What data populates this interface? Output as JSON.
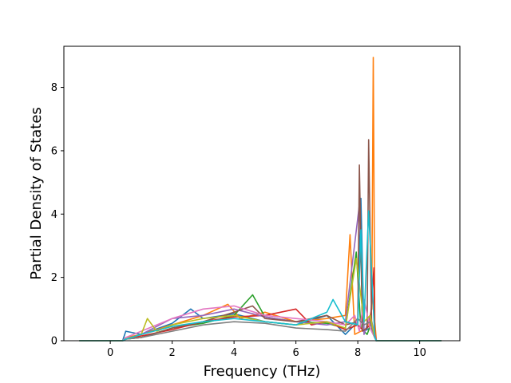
{
  "chart_data": {
    "type": "line",
    "title": "",
    "xlabel": "Frequency (THz)",
    "ylabel": "Partial Density of States",
    "xlim": [
      -1.5,
      11.3
    ],
    "ylim": [
      0,
      9.3
    ],
    "xticks": [
      "0",
      "2",
      "4",
      "6",
      "8",
      "10"
    ],
    "yticks": [
      "0",
      "2",
      "4",
      "6",
      "8"
    ],
    "grid": false,
    "legend": "none",
    "series_count": 10,
    "colors": [
      "#1f77b4",
      "#ff7f0e",
      "#2ca02c",
      "#d62728",
      "#9467bd",
      "#8c564b",
      "#e377c2",
      "#7f7f7f",
      "#bcbd22",
      "#17becf"
    ],
    "series": [
      {
        "x": [
          -1.0,
          0.4,
          0.5,
          1.0,
          2.0,
          2.6,
          3.0,
          4.0,
          5.0,
          6.0,
          7.0,
          7.6,
          8.0,
          8.1,
          8.2,
          8.4,
          8.55,
          8.6,
          10.7
        ],
        "values": [
          0,
          0,
          0.3,
          0.2,
          0.55,
          1.0,
          0.7,
          0.85,
          0.6,
          0.5,
          0.8,
          0.2,
          0.6,
          4.5,
          0.3,
          0.4,
          0.1,
          0,
          0
        ]
      },
      {
        "x": [
          -1.0,
          0.4,
          0.5,
          1.0,
          2.0,
          3.0,
          3.8,
          4.2,
          5.0,
          6.0,
          7.0,
          7.6,
          7.75,
          7.9,
          8.3,
          8.45,
          8.5,
          8.55,
          8.6,
          10.7
        ],
        "values": [
          0,
          0,
          0.1,
          0.2,
          0.5,
          0.8,
          1.15,
          0.7,
          0.9,
          0.6,
          0.7,
          0.8,
          3.35,
          0.2,
          0.4,
          1.0,
          8.95,
          0.6,
          0,
          0
        ]
      },
      {
        "x": [
          -1.0,
          0.4,
          0.5,
          1.0,
          2.0,
          3.0,
          4.0,
          4.6,
          5.0,
          6.0,
          7.0,
          7.6,
          7.95,
          8.1,
          8.3,
          8.45,
          8.55,
          8.6,
          10.7
        ],
        "values": [
          0,
          0,
          0.05,
          0.1,
          0.4,
          0.55,
          0.8,
          1.45,
          0.75,
          0.6,
          0.55,
          0.4,
          2.8,
          0.4,
          0.2,
          0.6,
          0.1,
          0,
          0
        ]
      },
      {
        "x": [
          -1.0,
          0.4,
          0.5,
          1.0,
          2.0,
          3.0,
          4.0,
          5.0,
          6.0,
          6.5,
          7.0,
          7.6,
          8.0,
          8.2,
          8.4,
          8.52,
          8.55,
          8.6,
          10.7
        ],
        "values": [
          0,
          0,
          0.05,
          0.15,
          0.35,
          0.6,
          0.75,
          0.8,
          1.0,
          0.5,
          0.6,
          0.35,
          0.5,
          0.3,
          0.5,
          2.3,
          0.2,
          0,
          0
        ]
      },
      {
        "x": [
          -1.0,
          0.4,
          0.5,
          1.0,
          2.0,
          3.0,
          4.0,
          5.0,
          6.0,
          7.0,
          7.6,
          8.05,
          8.2,
          8.4,
          8.55,
          8.6,
          10.7
        ],
        "values": [
          0,
          0,
          0.05,
          0.2,
          0.7,
          0.8,
          1.0,
          0.75,
          0.6,
          0.5,
          0.6,
          4.3,
          0.2,
          0.8,
          0.2,
          0,
          0
        ]
      },
      {
        "x": [
          -1.0,
          0.4,
          0.5,
          1.0,
          2.0,
          3.0,
          4.0,
          4.6,
          5.0,
          6.0,
          7.0,
          7.6,
          8.0,
          8.05,
          8.15,
          8.3,
          8.35,
          8.45,
          8.55,
          8.6,
          10.7
        ],
        "values": [
          0,
          0,
          0.05,
          0.1,
          0.4,
          0.6,
          0.9,
          1.1,
          0.7,
          0.6,
          0.8,
          0.5,
          0.6,
          5.55,
          0.3,
          0.4,
          6.35,
          0.3,
          0.1,
          0,
          0
        ]
      },
      {
        "x": [
          -1.0,
          0.4,
          0.5,
          1.0,
          2.0,
          3.0,
          4.0,
          5.0,
          6.0,
          7.0,
          7.6,
          7.9,
          8.05,
          8.2,
          8.4,
          8.55,
          8.6,
          10.7
        ],
        "values": [
          0,
          0,
          0.1,
          0.3,
          0.7,
          1.0,
          1.1,
          0.8,
          0.7,
          0.6,
          0.5,
          0.8,
          0.3,
          1.3,
          0.4,
          0.1,
          0,
          0
        ]
      },
      {
        "x": [
          -1.0,
          0.4,
          0.5,
          1.0,
          2.0,
          3.0,
          4.0,
          5.0,
          6.0,
          7.0,
          7.6,
          8.0,
          8.2,
          8.4,
          8.55,
          8.6,
          10.7
        ],
        "values": [
          0,
          0,
          0.05,
          0.1,
          0.3,
          0.5,
          0.6,
          0.55,
          0.4,
          0.35,
          0.3,
          0.7,
          0.5,
          0.6,
          0.1,
          0,
          0
        ]
      },
      {
        "x": [
          -1.0,
          0.4,
          0.5,
          1.0,
          1.2,
          1.5,
          2.0,
          3.0,
          4.0,
          5.0,
          6.0,
          7.0,
          7.6,
          7.95,
          8.2,
          8.4,
          8.55,
          8.6,
          10.7
        ],
        "values": [
          0,
          0,
          0.05,
          0.2,
          0.7,
          0.3,
          0.5,
          0.7,
          0.8,
          0.6,
          0.5,
          0.6,
          0.4,
          2.6,
          0.6,
          0.8,
          0.1,
          0,
          0
        ]
      },
      {
        "x": [
          -1.0,
          0.4,
          0.5,
          1.0,
          2.0,
          3.0,
          4.0,
          5.0,
          6.0,
          7.0,
          7.2,
          7.6,
          8.0,
          8.1,
          8.2,
          8.35,
          8.55,
          8.6,
          10.7
        ],
        "values": [
          0,
          0,
          0.05,
          0.2,
          0.45,
          0.6,
          0.7,
          0.6,
          0.5,
          0.9,
          1.3,
          0.6,
          0.5,
          3.5,
          0.6,
          4.1,
          0.1,
          0,
          0
        ]
      }
    ]
  }
}
